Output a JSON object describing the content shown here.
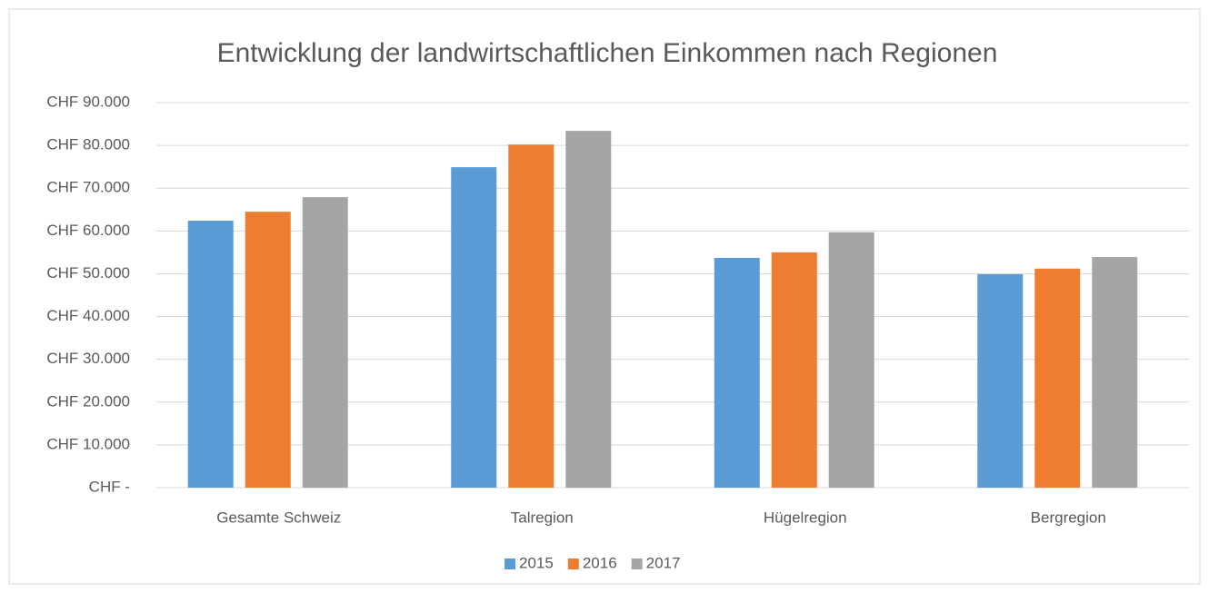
{
  "chart_data": {
    "type": "bar",
    "title": "Entwicklung der landwirtschaftlichen Einkommen nach Regionen",
    "categories": [
      "Gesamte Schweiz",
      "Talregion",
      "Hügelregion",
      "Bergregion"
    ],
    "series": [
      {
        "name": "2015",
        "color": "#5b9bd5",
        "values": [
          62400,
          74900,
          53700,
          49900
        ]
      },
      {
        "name": "2016",
        "color": "#ed7d31",
        "values": [
          64500,
          80200,
          55000,
          51200
        ]
      },
      {
        "name": "2017",
        "color": "#a5a5a5",
        "values": [
          67900,
          83400,
          59700,
          53900
        ]
      }
    ],
    "ylim": [
      0,
      90000
    ],
    "yticks": [
      {
        "value": 0,
        "label": "CHF -"
      },
      {
        "value": 10000,
        "label": "CHF 10.000"
      },
      {
        "value": 20000,
        "label": "CHF 20.000"
      },
      {
        "value": 30000,
        "label": "CHF 30.000"
      },
      {
        "value": 40000,
        "label": "CHF 40.000"
      },
      {
        "value": 50000,
        "label": "CHF 50.000"
      },
      {
        "value": 60000,
        "label": "CHF 60.000"
      },
      {
        "value": 70000,
        "label": "CHF 70.000"
      },
      {
        "value": 80000,
        "label": "CHF 80.000"
      },
      {
        "value": 90000,
        "label": "CHF 90.000"
      }
    ],
    "grid": true,
    "legend": "bottom"
  }
}
